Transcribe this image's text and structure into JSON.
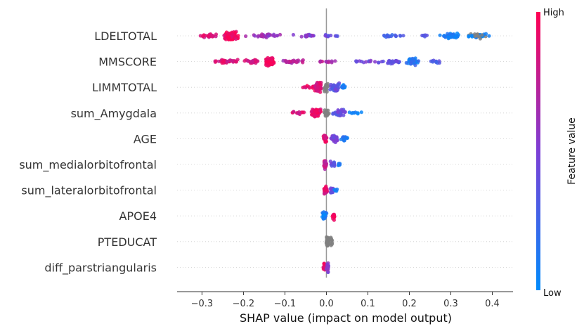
{
  "chart_data": {
    "type": "scatter",
    "subtype": "shap-beeswarm",
    "title": "",
    "xlabel": "SHAP value (impact on model output)",
    "ylabel": "",
    "xlim": [
      -0.36,
      0.45
    ],
    "xticks": [
      -0.3,
      -0.2,
      -0.1,
      0.0,
      0.1,
      0.2,
      0.3,
      0.4
    ],
    "xtick_labels": [
      "−0.3",
      "−0.2",
      "−0.1",
      "0.0",
      "0.1",
      "0.2",
      "0.3",
      "0.4"
    ],
    "grid": false,
    "zero_line": true,
    "colorbar": {
      "title": "Feature value",
      "high_label": "High",
      "low_label": "Low",
      "high_color": "#ff0052",
      "mid_color": "#7c3fd6",
      "low_color": "#008bfb",
      "missing_color": "#808080"
    },
    "features": [
      {
        "name": "LDELTOTAL",
        "clusters": [
          {
            "x": -0.285,
            "spread": 0.03,
            "n": 22,
            "fv": 0.85
          },
          {
            "x": -0.228,
            "spread": 0.022,
            "n": 90,
            "fv": 0.95
          },
          {
            "x": -0.15,
            "spread": 0.05,
            "n": 30,
            "fv": 0.6
          },
          {
            "x": -0.05,
            "spread": 0.05,
            "n": 20,
            "fv": 0.5
          },
          {
            "x": 0.02,
            "spread": 0.04,
            "n": 10,
            "fv": 0.4
          },
          {
            "x": 0.16,
            "spread": 0.04,
            "n": 16,
            "fv": 0.25
          },
          {
            "x": 0.24,
            "spread": 0.02,
            "n": 6,
            "fv": 0.35
          },
          {
            "x": 0.3,
            "spread": 0.03,
            "n": 40,
            "fv": 0.1
          },
          {
            "x": 0.365,
            "spread": 0.035,
            "n": 45,
            "fv": 0.0
          }
        ]
      },
      {
        "name": "MMSCORE",
        "clusters": [
          {
            "x": -0.245,
            "spread": 0.045,
            "n": 35,
            "fv": 0.85
          },
          {
            "x": -0.183,
            "spread": 0.025,
            "n": 24,
            "fv": 0.85
          },
          {
            "x": -0.138,
            "spread": 0.015,
            "n": 110,
            "fv": 0.97
          },
          {
            "x": -0.08,
            "spread": 0.04,
            "n": 25,
            "fv": 0.7
          },
          {
            "x": 0.0,
            "spread": 0.035,
            "n": 12,
            "fv": 0.7
          },
          {
            "x": 0.1,
            "spread": 0.05,
            "n": 16,
            "fv": 0.45
          },
          {
            "x": 0.16,
            "spread": 0.03,
            "n": 24,
            "fv": 0.4
          },
          {
            "x": 0.21,
            "spread": 0.02,
            "n": 40,
            "fv": 0.15
          },
          {
            "x": 0.26,
            "spread": 0.02,
            "n": 10,
            "fv": 0.35
          }
        ]
      },
      {
        "name": "LIMMTOTAL",
        "clusters": [
          {
            "x": -0.045,
            "spread": 0.02,
            "n": 10,
            "fv": 0.9
          },
          {
            "x": -0.02,
            "spread": 0.012,
            "n": 90,
            "fv": 0.85
          },
          {
            "x": 0.0,
            "spread": 0.008,
            "n": 20,
            "fv": -1
          },
          {
            "x": 0.02,
            "spread": 0.018,
            "n": 45,
            "fv": 0.4
          },
          {
            "x": 0.04,
            "spread": 0.008,
            "n": 12,
            "fv": 0.1
          }
        ]
      },
      {
        "name": "sum_Amygdala",
        "clusters": [
          {
            "x": -0.07,
            "spread": 0.02,
            "n": 14,
            "fv": 0.85
          },
          {
            "x": -0.025,
            "spread": 0.015,
            "n": 70,
            "fv": 0.9
          },
          {
            "x": 0.0,
            "spread": 0.008,
            "n": 20,
            "fv": -1
          },
          {
            "x": 0.03,
            "spread": 0.02,
            "n": 40,
            "fv": 0.4
          },
          {
            "x": 0.07,
            "spread": 0.02,
            "n": 8,
            "fv": 0.1
          }
        ]
      },
      {
        "name": "AGE",
        "clusters": [
          {
            "x": -0.003,
            "spread": 0.005,
            "n": 40,
            "fv": 0.9
          },
          {
            "x": 0.02,
            "spread": 0.012,
            "n": 25,
            "fv": 0.45
          },
          {
            "x": 0.045,
            "spread": 0.012,
            "n": 20,
            "fv": 0.15
          }
        ]
      },
      {
        "name": "sum_medialorbitofrontal",
        "clusters": [
          {
            "x": -0.003,
            "spread": 0.004,
            "n": 45,
            "fv": 0.75
          },
          {
            "x": 0.015,
            "spread": 0.008,
            "n": 15,
            "fv": 0.4
          },
          {
            "x": 0.03,
            "spread": 0.006,
            "n": 8,
            "fv": 0.1
          }
        ]
      },
      {
        "name": "sum_lateralorbitofrontal",
        "clusters": [
          {
            "x": -0.003,
            "spread": 0.005,
            "n": 45,
            "fv": 0.85
          },
          {
            "x": 0.012,
            "spread": 0.007,
            "n": 12,
            "fv": 0.45
          },
          {
            "x": 0.022,
            "spread": 0.005,
            "n": 6,
            "fv": 0.1
          }
        ]
      },
      {
        "name": "APOE4",
        "clusters": [
          {
            "x": -0.005,
            "spread": 0.006,
            "n": 40,
            "fv": 0.1
          },
          {
            "x": 0.018,
            "spread": 0.006,
            "n": 14,
            "fv": 0.95
          }
        ]
      },
      {
        "name": "PTEDUCAT",
        "clusters": [
          {
            "x": 0.003,
            "spread": 0.004,
            "n": 60,
            "fv": -1
          },
          {
            "x": 0.012,
            "spread": 0.004,
            "n": 10,
            "fv": -1
          }
        ]
      },
      {
        "name": "diff_parstriangularis",
        "clusters": [
          {
            "x": -0.005,
            "spread": 0.004,
            "n": 22,
            "fv": 0.9
          },
          {
            "x": 0.003,
            "spread": 0.004,
            "n": 28,
            "fv": 0.5
          }
        ]
      }
    ]
  }
}
